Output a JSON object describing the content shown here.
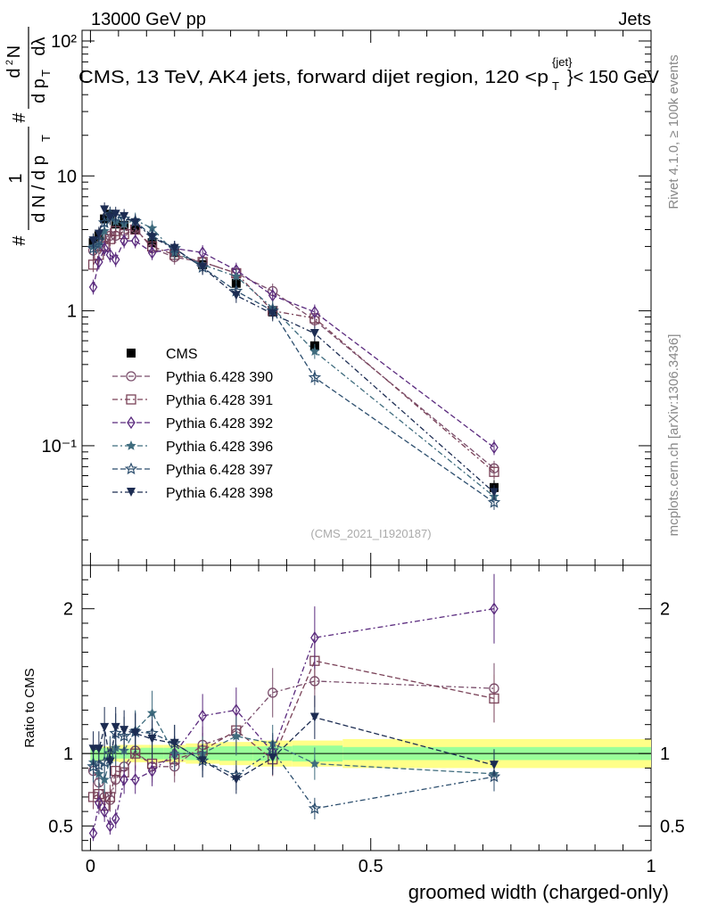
{
  "header": {
    "energy_label": "13000 GeV pp",
    "category_label": "Jets",
    "plot_title": "CMS, 13 TeV, AK4 jets, forward dijet region, 120 <p_T^{jet}< 150 GeV",
    "title_prefix": "CMS, 13 TeV, AK4 jets, forward dijet region, 120 <p",
    "title_sup": "{jet}",
    "title_sub": "T",
    "title_suffix": "}< 150 GeV"
  },
  "side_labels": {
    "rivet": "Rivet 4.1.0, ≥ 100k events",
    "mcplots": "mcplots.cern.ch [arXiv:1306.3436]"
  },
  "analysis_id": "(CMS_2021_I1920187)",
  "colors": {
    "data": "#000000",
    "p390": "#7a4e6b",
    "p391": "#7a4258",
    "p392": "#5a2a7e",
    "p396": "#3f6c7e",
    "p397": "#2c4e6e",
    "p398": "#1c2c52",
    "band_inner": "#99ff99",
    "band_outer": "#ffff88"
  },
  "chart_data": [
    {
      "type": "scatter",
      "panel": "main",
      "ylabel": "1/N dN/dλ (with p_T normalisation)",
      "ylabel_parts": [
        "#",
        "1",
        "d N / d p",
        "T",
        "#",
        "d",
        "2",
        "N",
        "d p",
        "T",
        "dλ"
      ],
      "yscale": "log",
      "ylim": [
        0.013,
        120
      ],
      "ytick_labels": [
        "10⁻¹",
        "1",
        "10",
        "10²"
      ],
      "ytick_values": [
        0.1,
        1,
        10,
        100
      ],
      "xlim": [
        -0.015,
        1.0
      ],
      "x": [
        0.005,
        0.015,
        0.025,
        0.035,
        0.045,
        0.06,
        0.08,
        0.11,
        0.15,
        0.2,
        0.26,
        0.325,
        0.4,
        0.72
      ],
      "series": [
        {
          "name": "CMS",
          "key": "data",
          "marker": "square-filled",
          "values": [
            3.2,
            3.6,
            4.8,
            5.2,
            4.4,
            4.3,
            4.0,
            3.2,
            2.7,
            2.2,
            1.6,
            0.98,
            0.55,
            0.049
          ]
        },
        {
          "name": "Pythia 6.428 390",
          "key": "p390",
          "marker": "circle-open",
          "values": [
            2.8,
            3.0,
            3.5,
            3.6,
            3.6,
            3.9,
            4.1,
            2.9,
            2.5,
            2.3,
            1.9,
            1.4,
            0.85,
            0.068
          ]
        },
        {
          "name": "Pythia 6.428 391",
          "key": "p391",
          "marker": "square-open",
          "values": [
            2.2,
            2.6,
            3.0,
            3.4,
            3.9,
            3.7,
            4.0,
            3.0,
            2.6,
            2.3,
            1.9,
            1.0,
            0.88,
            0.064
          ]
        },
        {
          "name": "Pythia 6.428 392",
          "key": "p392",
          "marker": "diamond-open",
          "values": [
            1.5,
            2.3,
            2.9,
            2.6,
            2.4,
            3.3,
            3.3,
            2.7,
            2.9,
            2.7,
            2.0,
            1.3,
            0.98,
            0.097
          ]
        },
        {
          "name": "Pythia 6.428 396",
          "key": "p396",
          "marker": "star-filled",
          "values": [
            3.0,
            3.1,
            3.9,
            5.0,
            4.6,
            4.4,
            4.7,
            4.1,
            2.7,
            2.2,
            1.8,
            1.05,
            0.5,
            0.042
          ]
        },
        {
          "name": "Pythia 6.428 397",
          "key": "p397",
          "marker": "star-open",
          "values": [
            2.9,
            3.3,
            4.5,
            5.2,
            5.0,
            4.8,
            4.6,
            3.6,
            2.9,
            2.1,
            1.4,
            1.0,
            0.32,
            0.038
          ]
        },
        {
          "name": "Pythia 6.428 398",
          "key": "p398",
          "marker": "triangle-down-filled",
          "values": [
            3.3,
            3.7,
            5.6,
            4.9,
            5.2,
            5.0,
            4.5,
            3.5,
            2.9,
            2.1,
            1.3,
            0.95,
            0.68,
            0.045
          ]
        }
      ]
    },
    {
      "type": "scatter",
      "panel": "ratio",
      "ylabel": "Ratio to CMS",
      "ylim": [
        0.33,
        2.3
      ],
      "ytick_labels": [
        "0.5",
        "1",
        "2"
      ],
      "ytick_values": [
        0.5,
        1,
        2
      ],
      "xlabel": "groomed width (charged-only)",
      "xlim": [
        -0.015,
        1.0
      ],
      "xtick_labels": [
        "0",
        "0.5",
        "1"
      ],
      "xtick_values": [
        0,
        0.5,
        1
      ],
      "x": [
        0.005,
        0.015,
        0.025,
        0.035,
        0.045,
        0.06,
        0.08,
        0.11,
        0.15,
        0.2,
        0.26,
        0.325,
        0.4,
        0.72
      ],
      "band_edges": [
        0,
        0.01,
        0.02,
        0.03,
        0.04,
        0.05,
        0.07,
        0.09,
        0.13,
        0.17,
        0.23,
        0.29,
        0.36,
        0.45,
        1.0
      ],
      "band_inner": [
        0.05,
        0.045,
        0.04,
        0.035,
        0.035,
        0.035,
        0.035,
        0.04,
        0.04,
        0.045,
        0.05,
        0.05,
        0.055,
        0.045
      ],
      "band_outer": [
        0.06,
        0.055,
        0.05,
        0.05,
        0.055,
        0.06,
        0.06,
        0.06,
        0.06,
        0.07,
        0.08,
        0.09,
        0.09,
        0.1
      ],
      "series": [
        {
          "name": "Pythia 6.428 390",
          "key": "p390",
          "marker": "circle-open",
          "values": [
            0.88,
            0.8,
            0.7,
            0.68,
            0.82,
            0.91,
            1.02,
            0.91,
            0.91,
            1.06,
            1.14,
            1.42,
            1.5,
            1.45
          ]
        },
        {
          "name": "Pythia 6.428 391",
          "key": "p391",
          "marker": "square-open",
          "values": [
            0.7,
            0.72,
            0.64,
            0.7,
            0.88,
            0.87,
            1.0,
            0.93,
            0.96,
            1.02,
            1.16,
            0.96,
            1.64,
            1.38
          ]
        },
        {
          "name": "Pythia 6.428 392",
          "key": "p392",
          "marker": "diamond-open",
          "values": [
            0.45,
            0.66,
            0.6,
            0.5,
            0.55,
            0.82,
            0.82,
            0.88,
            1.0,
            1.26,
            1.3,
            1.01,
            1.8,
            2.0
          ]
        },
        {
          "name": "Pythia 6.428 396",
          "key": "p396",
          "marker": "star-filled",
          "values": [
            0.94,
            0.86,
            0.82,
            0.96,
            1.04,
            1.02,
            1.16,
            1.28,
            1.0,
            1.0,
            1.12,
            1.07,
            0.93,
            0.86
          ]
        },
        {
          "name": "Pythia 6.428 397",
          "key": "p397",
          "marker": "star-open",
          "values": [
            0.91,
            0.92,
            0.94,
            1.0,
            1.14,
            1.12,
            1.15,
            1.14,
            1.07,
            0.95,
            0.85,
            1.02,
            0.62,
            0.84
          ]
        },
        {
          "name": "Pythia 6.428 398",
          "key": "p398",
          "marker": "triangle-down-filled",
          "values": [
            1.03,
            1.03,
            1.18,
            0.94,
            1.18,
            1.16,
            1.14,
            1.1,
            1.07,
            0.95,
            0.82,
            0.97,
            1.25,
            0.92
          ]
        }
      ]
    }
  ]
}
